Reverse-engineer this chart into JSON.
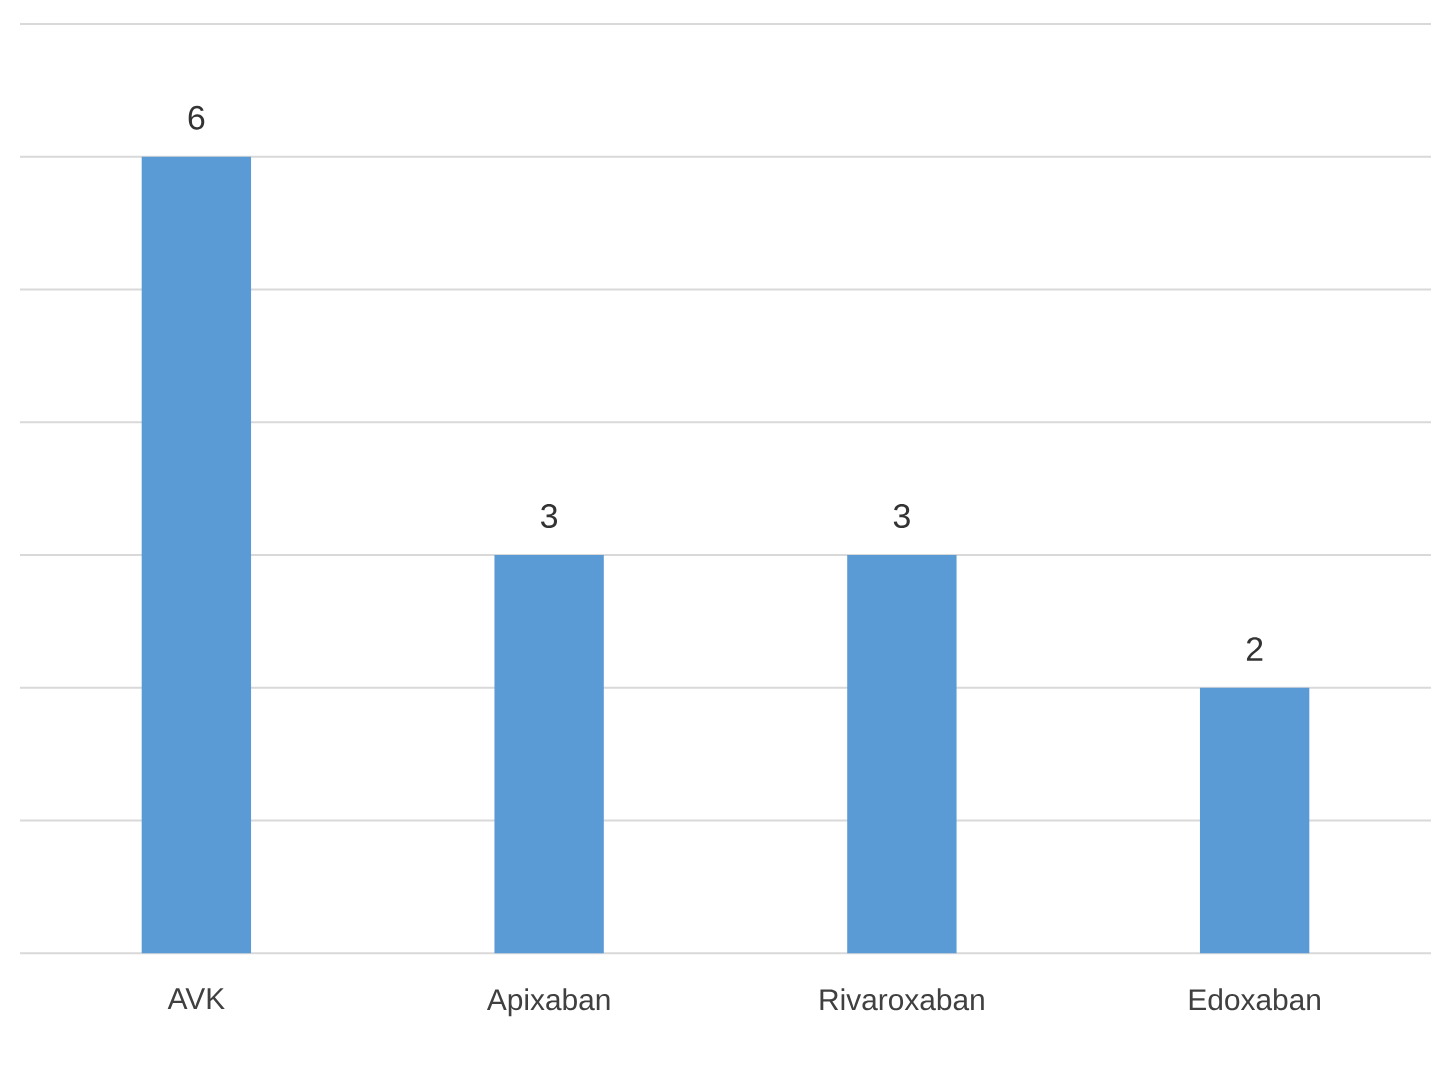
{
  "chart_data": {
    "type": "bar",
    "categories": [
      "AVK",
      "Apixaban",
      "Rivaroxaban",
      "Edoxaban"
    ],
    "values": [
      6,
      3,
      3,
      2
    ],
    "color": "#5b9bd5",
    "ylim": [
      0,
      7
    ],
    "yticks": [
      {
        "value": 0,
        "label": null
      },
      {
        "value": 1,
        "label": null
      },
      {
        "value": 2,
        "label": null
      },
      {
        "value": 3,
        "label": null
      },
      {
        "value": 4,
        "label": null
      },
      {
        "value": 5,
        "label": null
      },
      {
        "value": 6,
        "label": null
      },
      {
        "value": 7,
        "label": null
      }
    ],
    "grid": "y",
    "tick_labels": "x",
    "data_labels": true
  }
}
